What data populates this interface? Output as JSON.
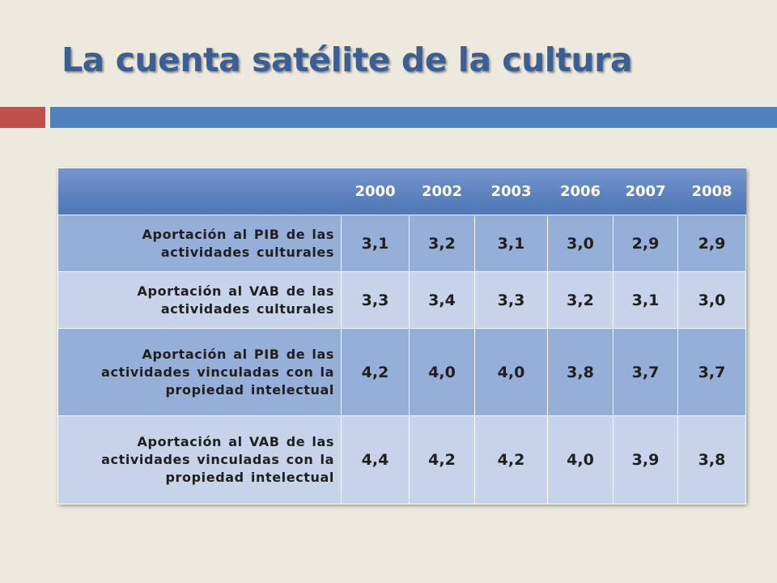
{
  "slide": {
    "title": "La cuenta satélite de la cultura"
  },
  "colors": {
    "background": "#ede9df",
    "title": "#3a5f95",
    "accent_red": "#c0504d",
    "accent_blue": "#4f81bd",
    "header": "#5d82be",
    "row_dark": "#95afd8",
    "row_light": "#c6d3e8"
  },
  "table": {
    "corner": "",
    "years": [
      "2000",
      "2002",
      "2003",
      "2006",
      "2007",
      "2008"
    ],
    "rows": [
      {
        "label": "Aportación al PIB de las actividades culturales",
        "values": [
          "3,1",
          "3,2",
          "3,1",
          "3,0",
          "2,9",
          "2,9"
        ]
      },
      {
        "label": "Aportación al VAB de las actividades culturales",
        "values": [
          "3,3",
          "3,4",
          "3,3",
          "3,2",
          "3,1",
          "3,0"
        ]
      },
      {
        "label": "Aportación al PIB de las actividades vinculadas con la propiedad intelectual",
        "values": [
          "4,2",
          "4,0",
          "4,0",
          "3,8",
          "3,7",
          "3,7"
        ]
      },
      {
        "label": "Aportación al VAB de las actividades vinculadas con la propiedad intelectual",
        "values": [
          "4,4",
          "4,2",
          "4,2",
          "4,0",
          "3,9",
          "3,8"
        ]
      }
    ]
  }
}
